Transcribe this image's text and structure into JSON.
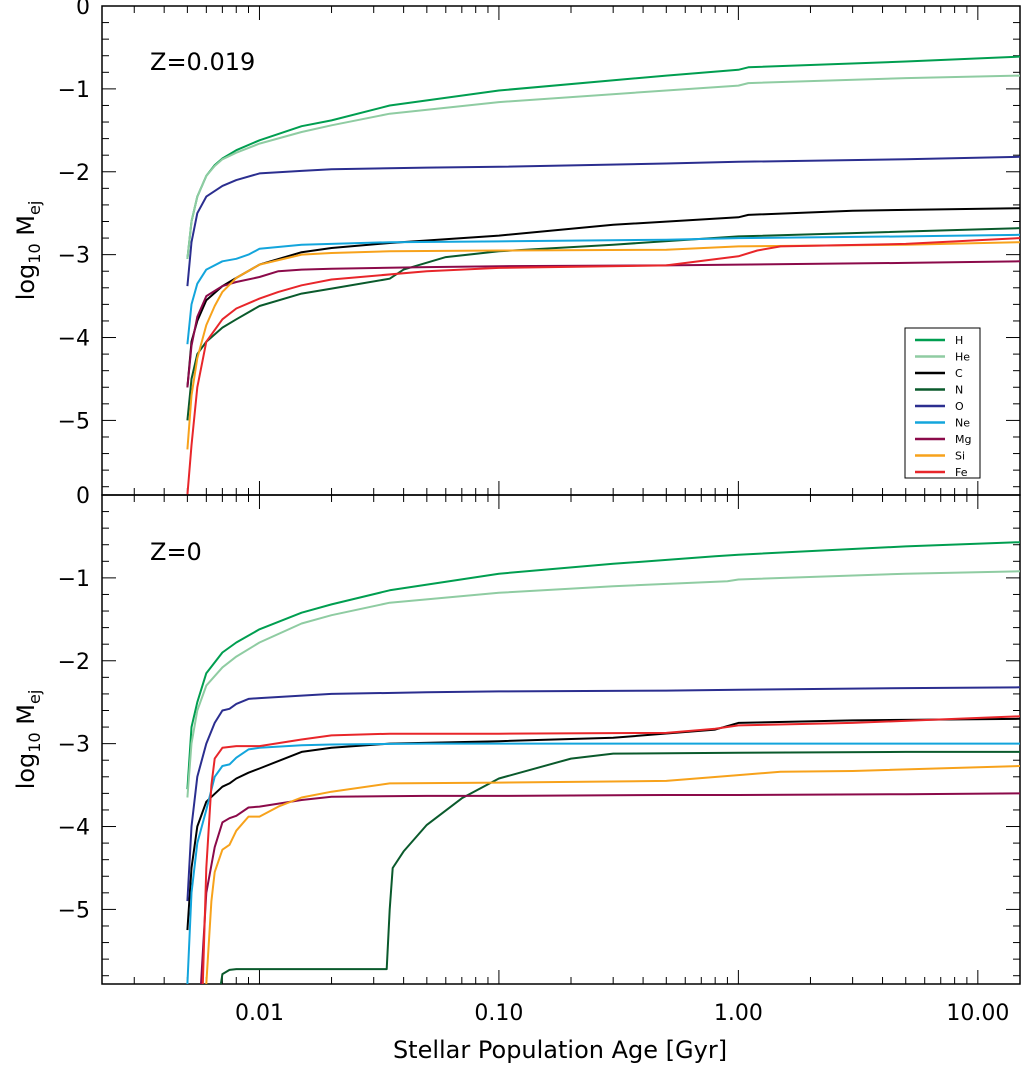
{
  "chart_data": [
    {
      "type": "line",
      "panel_label": "Z=0.019",
      "xlabel": "Stellar Population Age [Gyr]",
      "ylabel": "log10 M_ej",
      "xscale": "log",
      "xlim": [
        0.0022,
        15
      ],
      "ylim": [
        -5.9,
        0
      ],
      "yticks": [
        "0",
        "−1",
        "−2",
        "−3",
        "−4",
        "−5"
      ],
      "legend": {
        "placement": "lower-right"
      },
      "series": [
        {
          "name": "H",
          "color": "#009e50",
          "x": [
            0.005,
            0.0052,
            0.0055,
            0.006,
            0.0065,
            0.007,
            0.008,
            0.01,
            0.015,
            0.02,
            0.035,
            0.1,
            0.5,
            1.0,
            1.1,
            5,
            15
          ],
          "y": [
            -3.05,
            -2.6,
            -2.3,
            -2.05,
            -1.92,
            -1.84,
            -1.74,
            -1.62,
            -1.45,
            -1.38,
            -1.2,
            -1.02,
            -0.84,
            -0.77,
            -0.74,
            -0.67,
            -0.61
          ]
        },
        {
          "name": "He",
          "color": "#8fcca2",
          "x": [
            0.005,
            0.0052,
            0.0055,
            0.006,
            0.0065,
            0.007,
            0.008,
            0.01,
            0.015,
            0.02,
            0.035,
            0.1,
            0.5,
            1.0,
            1.1,
            5,
            15
          ],
          "y": [
            -3.05,
            -2.6,
            -2.3,
            -2.05,
            -1.93,
            -1.85,
            -1.77,
            -1.66,
            -1.52,
            -1.44,
            -1.3,
            -1.16,
            -1.02,
            -0.96,
            -0.93,
            -0.87,
            -0.84
          ]
        },
        {
          "name": "C",
          "color": "#000000",
          "x": [
            0.005,
            0.0052,
            0.0055,
            0.006,
            0.007,
            0.008,
            0.01,
            0.015,
            0.02,
            0.035,
            0.1,
            0.3,
            1.0,
            1.1,
            3,
            15
          ],
          "y": [
            -4.6,
            -4.05,
            -3.8,
            -3.55,
            -3.38,
            -3.28,
            -3.12,
            -2.97,
            -2.92,
            -2.86,
            -2.77,
            -2.64,
            -2.55,
            -2.52,
            -2.47,
            -2.44
          ]
        },
        {
          "name": "N",
          "color": "#0a5a2c",
          "x": [
            0.005,
            0.0052,
            0.0055,
            0.006,
            0.007,
            0.008,
            0.01,
            0.015,
            0.02,
            0.035,
            0.04,
            0.06,
            0.1,
            0.3,
            1.0,
            3,
            15
          ],
          "y": [
            -5.0,
            -4.5,
            -4.2,
            -4.05,
            -3.88,
            -3.78,
            -3.62,
            -3.47,
            -3.41,
            -3.29,
            -3.18,
            -3.03,
            -2.96,
            -2.88,
            -2.78,
            -2.74,
            -2.68
          ]
        },
        {
          "name": "O",
          "color": "#2b2e8f",
          "x": [
            0.005,
            0.0052,
            0.0055,
            0.006,
            0.007,
            0.008,
            0.01,
            0.015,
            0.02,
            0.05,
            0.1,
            0.5,
            1.0,
            5,
            15
          ],
          "y": [
            -3.38,
            -2.85,
            -2.5,
            -2.3,
            -2.17,
            -2.1,
            -2.02,
            -1.99,
            -1.97,
            -1.95,
            -1.94,
            -1.9,
            -1.88,
            -1.85,
            -1.82
          ]
        },
        {
          "name": "Ne",
          "color": "#13a5dc",
          "x": [
            0.005,
            0.0052,
            0.0055,
            0.006,
            0.007,
            0.008,
            0.009,
            0.01,
            0.015,
            0.02,
            0.035,
            0.1,
            0.5,
            1.0,
            5,
            15
          ],
          "y": [
            -4.08,
            -3.6,
            -3.35,
            -3.18,
            -3.08,
            -3.05,
            -3.0,
            -2.93,
            -2.88,
            -2.87,
            -2.85,
            -2.84,
            -2.82,
            -2.8,
            -2.78,
            -2.76
          ]
        },
        {
          "name": "Mg",
          "color": "#8b0a4a",
          "x": [
            0.005,
            0.0052,
            0.0055,
            0.006,
            0.007,
            0.008,
            0.01,
            0.012,
            0.015,
            0.02,
            0.05,
            0.1,
            0.5,
            1.0,
            5,
            15
          ],
          "y": [
            -4.6,
            -4.1,
            -3.75,
            -3.5,
            -3.38,
            -3.33,
            -3.27,
            -3.2,
            -3.18,
            -3.17,
            -3.15,
            -3.14,
            -3.13,
            -3.12,
            -3.1,
            -3.08
          ]
        },
        {
          "name": "Si",
          "color": "#f7a21b",
          "x": [
            0.005,
            0.0052,
            0.0055,
            0.006,
            0.0065,
            0.007,
            0.008,
            0.01,
            0.015,
            0.02,
            0.035,
            0.1,
            0.5,
            1.0,
            5,
            15
          ],
          "y": [
            -5.35,
            -4.7,
            -4.25,
            -3.85,
            -3.62,
            -3.45,
            -3.28,
            -3.12,
            -3.0,
            -2.98,
            -2.96,
            -2.95,
            -2.94,
            -2.9,
            -2.88,
            -2.85
          ]
        },
        {
          "name": "Fe",
          "color": "#e8262a",
          "x": [
            0.005,
            0.0052,
            0.0055,
            0.006,
            0.007,
            0.008,
            0.01,
            0.012,
            0.015,
            0.02,
            0.05,
            0.1,
            0.5,
            1.0,
            1.2,
            1.5,
            5,
            15
          ],
          "y": [
            -5.9,
            -5.3,
            -4.6,
            -4.05,
            -3.78,
            -3.65,
            -3.53,
            -3.45,
            -3.37,
            -3.3,
            -3.2,
            -3.16,
            -3.13,
            -3.02,
            -2.95,
            -2.9,
            -2.87,
            -2.8
          ]
        }
      ]
    },
    {
      "type": "line",
      "panel_label": "Z=0",
      "xlabel": "Stellar Population Age [Gyr]",
      "ylabel": "log10 M_ej",
      "xscale": "log",
      "xlim": [
        0.0022,
        15
      ],
      "ylim": [
        -5.9,
        0
      ],
      "xticks": [
        "0.01",
        "0.10",
        "1.00",
        "10.00"
      ],
      "yticks": [
        "0",
        "−1",
        "−2",
        "−3",
        "−4",
        "−5"
      ],
      "series": [
        {
          "name": "H",
          "color": "#009e50",
          "x": [
            0.005,
            0.0052,
            0.0055,
            0.006,
            0.007,
            0.008,
            0.01,
            0.015,
            0.02,
            0.035,
            0.1,
            0.3,
            0.8,
            1.0,
            5,
            15
          ],
          "y": [
            -3.55,
            -2.8,
            -2.5,
            -2.15,
            -1.9,
            -1.78,
            -1.62,
            -1.42,
            -1.32,
            -1.15,
            -0.95,
            -0.83,
            -0.74,
            -0.72,
            -0.62,
            -0.57
          ]
        },
        {
          "name": "He",
          "color": "#8fcca2",
          "x": [
            0.005,
            0.0052,
            0.0055,
            0.006,
            0.007,
            0.008,
            0.01,
            0.015,
            0.02,
            0.035,
            0.1,
            0.3,
            0.9,
            1.0,
            5,
            15
          ],
          "y": [
            -3.65,
            -3.0,
            -2.6,
            -2.3,
            -2.08,
            -1.95,
            -1.78,
            -1.55,
            -1.45,
            -1.3,
            -1.18,
            -1.1,
            -1.04,
            -1.02,
            -0.95,
            -0.92
          ]
        },
        {
          "name": "C",
          "color": "#000000",
          "x": [
            0.005,
            0.0052,
            0.0055,
            0.006,
            0.007,
            0.0075,
            0.008,
            0.009,
            0.01,
            0.015,
            0.02,
            0.035,
            0.1,
            0.3,
            0.8,
            1.0,
            3,
            15
          ],
          "y": [
            -5.25,
            -4.5,
            -4.0,
            -3.7,
            -3.52,
            -3.48,
            -3.42,
            -3.35,
            -3.3,
            -3.1,
            -3.05,
            -3.0,
            -2.97,
            -2.93,
            -2.83,
            -2.75,
            -2.72,
            -2.7
          ]
        },
        {
          "name": "N",
          "color": "#0a5a2c",
          "x": [
            0.0069,
            0.007,
            0.0075,
            0.008,
            0.01,
            0.015,
            0.02,
            0.03,
            0.034,
            0.035,
            0.036,
            0.04,
            0.05,
            0.07,
            0.1,
            0.2,
            0.3,
            1.0,
            5,
            15
          ],
          "y": [
            -5.9,
            -5.78,
            -5.73,
            -5.72,
            -5.72,
            -5.72,
            -5.72,
            -5.72,
            -5.72,
            -5.0,
            -4.5,
            -4.3,
            -3.98,
            -3.66,
            -3.42,
            -3.18,
            -3.12,
            -3.11,
            -3.1,
            -3.1
          ]
        },
        {
          "name": "O",
          "color": "#2b2e8f",
          "x": [
            0.005,
            0.0052,
            0.0055,
            0.006,
            0.0065,
            0.007,
            0.0075,
            0.008,
            0.009,
            0.01,
            0.015,
            0.02,
            0.05,
            0.1,
            0.5,
            1.0,
            5,
            15
          ],
          "y": [
            -4.9,
            -4.0,
            -3.4,
            -3.0,
            -2.75,
            -2.6,
            -2.58,
            -2.52,
            -2.46,
            -2.45,
            -2.42,
            -2.4,
            -2.38,
            -2.37,
            -2.36,
            -2.35,
            -2.33,
            -2.32
          ]
        },
        {
          "name": "Ne",
          "color": "#13a5dc",
          "x": [
            0.005,
            0.0052,
            0.0055,
            0.006,
            0.0065,
            0.007,
            0.0075,
            0.008,
            0.009,
            0.01,
            0.015,
            0.02,
            0.05,
            0.1,
            0.5,
            1.0,
            5,
            15
          ],
          "y": [
            -5.9,
            -4.8,
            -4.2,
            -3.8,
            -3.4,
            -3.27,
            -3.25,
            -3.17,
            -3.07,
            -3.05,
            -3.02,
            -3.01,
            -3.0,
            -3.0,
            -3.0,
            -3.0,
            -3.0,
            -3.0
          ]
        },
        {
          "name": "Mg",
          "color": "#8b0a4a",
          "x": [
            0.0057,
            0.006,
            0.0065,
            0.007,
            0.0075,
            0.008,
            0.009,
            0.01,
            0.015,
            0.02,
            0.05,
            0.1,
            0.5,
            1.0,
            5,
            15
          ],
          "y": [
            -5.9,
            -4.8,
            -4.25,
            -3.95,
            -3.9,
            -3.87,
            -3.77,
            -3.76,
            -3.68,
            -3.64,
            -3.63,
            -3.63,
            -3.62,
            -3.62,
            -3.61,
            -3.6
          ]
        },
        {
          "name": "Si",
          "color": "#f7a21b",
          "x": [
            0.006,
            0.0063,
            0.0065,
            0.007,
            0.0075,
            0.008,
            0.009,
            0.01,
            0.012,
            0.015,
            0.02,
            0.035,
            0.1,
            0.5,
            1.0,
            1.5,
            3,
            15
          ],
          "y": [
            -5.9,
            -4.9,
            -4.55,
            -4.28,
            -4.22,
            -4.05,
            -3.88,
            -3.88,
            -3.76,
            -3.65,
            -3.58,
            -3.48,
            -3.47,
            -3.45,
            -3.38,
            -3.34,
            -3.33,
            -3.27
          ]
        },
        {
          "name": "Fe",
          "color": "#e8262a",
          "x": [
            0.0058,
            0.006,
            0.0063,
            0.0065,
            0.007,
            0.008,
            0.01,
            0.015,
            0.02,
            0.035,
            0.1,
            0.5,
            0.8,
            1.0,
            3,
            15
          ],
          "y": [
            -5.9,
            -4.5,
            -3.5,
            -3.18,
            -3.05,
            -3.03,
            -3.03,
            -2.95,
            -2.9,
            -2.88,
            -2.88,
            -2.87,
            -2.82,
            -2.78,
            -2.75,
            -2.67
          ]
        }
      ]
    }
  ]
}
